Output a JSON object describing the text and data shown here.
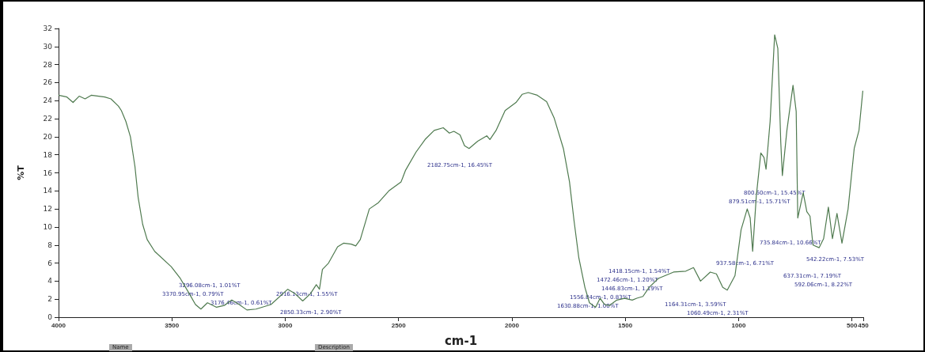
{
  "chart_data": {
    "type": "line",
    "xlabel": "cm-1",
    "ylabel": "%T",
    "xlim": [
      4000,
      450
    ],
    "xticks": [
      4000,
      3500,
      3000,
      2500,
      2000,
      1500,
      1000,
      500,
      450
    ],
    "ylim": [
      0,
      32
    ],
    "yticks": [
      0,
      2,
      4,
      6,
      8,
      10,
      12,
      14,
      16,
      18,
      20,
      22,
      24,
      26,
      28,
      30,
      32
    ],
    "grid": false,
    "marker": "none",
    "line_style": "solid",
    "series": [
      {
        "color": "#4f7a4f",
        "x": [
          4000,
          3963,
          3936,
          3909,
          3883,
          3856,
          3796,
          3769,
          3736,
          3723,
          3703,
          3683,
          3663,
          3649,
          3629,
          3609,
          3576,
          3503,
          3463,
          3423,
          3396,
          3372,
          3343,
          3303,
          3269,
          3236,
          3203,
          3169,
          3129,
          3063,
          2989,
          2956,
          2923,
          2889,
          2863,
          2849,
          2836,
          2809,
          2769,
          2743,
          2709,
          2689,
          2669,
          2629,
          2589,
          2543,
          2489,
          2469,
          2423,
          2383,
          2343,
          2303,
          2276,
          2256,
          2229,
          2209,
          2189,
          2151,
          2111,
          2097,
          2070,
          2030,
          1982,
          1955,
          1928,
          1888,
          1847,
          1814,
          1773,
          1746,
          1726,
          1705,
          1678,
          1658,
          1631,
          1611,
          1591,
          1570,
          1537,
          1503,
          1469,
          1449,
          1422,
          1395,
          1354,
          1287,
          1233,
          1199,
          1168,
          1125,
          1098,
          1070,
          1050,
          1016,
          989,
          962,
          949,
          938,
          922,
          902,
          888,
          879,
          861,
          841,
          827,
          814,
          807,
          787,
          760,
          746,
          739,
          715,
          699,
          685,
          672,
          645,
          625,
          604,
          586,
          566,
          544,
          517,
          490,
          469,
          452
        ],
        "values": [
          24.6,
          24.4,
          23.8,
          24.5,
          24.2,
          24.6,
          24.4,
          24.2,
          23.4,
          22.9,
          21.7,
          20.0,
          16.7,
          13.3,
          10.3,
          8.6,
          7.3,
          5.6,
          4.3,
          2.6,
          1.4,
          0.9,
          1.6,
          1.1,
          1.3,
          1.9,
          1.4,
          0.8,
          0.9,
          1.4,
          3.1,
          2.6,
          1.8,
          2.6,
          3.6,
          3.1,
          5.3,
          6.0,
          7.8,
          8.2,
          8.1,
          7.9,
          8.6,
          12.0,
          12.7,
          14.0,
          15.0,
          16.3,
          18.3,
          19.7,
          20.7,
          21.0,
          20.4,
          20.6,
          20.2,
          19.0,
          18.7,
          19.5,
          20.1,
          19.7,
          20.7,
          22.9,
          23.8,
          24.7,
          24.9,
          24.6,
          23.9,
          22.1,
          18.7,
          15.0,
          10.7,
          6.6,
          3.3,
          1.6,
          1.1,
          2.1,
          1.4,
          1.3,
          1.9,
          2.1,
          1.9,
          2.1,
          2.3,
          3.3,
          4.3,
          5.0,
          5.1,
          5.5,
          4.0,
          5.0,
          4.8,
          3.3,
          3.0,
          4.6,
          9.7,
          12.0,
          11.0,
          7.3,
          13.4,
          18.2,
          17.7,
          16.4,
          21.7,
          31.3,
          29.8,
          19.4,
          15.7,
          20.7,
          25.7,
          22.8,
          11.0,
          13.8,
          11.7,
          11.2,
          8.0,
          7.7,
          8.7,
          12.2,
          8.7,
          11.5,
          8.2,
          12.0,
          18.7,
          20.7,
          25.1
        ]
      }
    ],
    "annotations": [
      "3370.95cm-1, 0.79%T",
      "3296.08cm-1, 1.01%T",
      "3176.46cm-1, 0.61%T",
      "2916.13cm-1, 1.55%T",
      "2850.33cm-1, 2.90%T",
      "2182.75cm-1, 16.45%T",
      "1630.88cm-1, 1.00%T",
      "1556.84cm-1, 0.83%T",
      "1472.46cm-1, 1.20%T",
      "1446.83cm-1, 1.19%T",
      "1418.15cm-1, 1.54%T",
      "1164.31cm-1, 3.59%T",
      "1060.49cm-1, 2.31%T",
      "937.58cm-1, 6.71%T",
      "879.51cm-1, 15.71%T",
      "800.60cm-1, 15.45%T",
      "735.84cm-1, 10.66%T",
      "637.31cm-1, 7.19%T",
      "592.06cm-1, 8.22%T",
      "542.22cm-1, 7.53%T",
      "Name",
      "Description"
    ]
  }
}
